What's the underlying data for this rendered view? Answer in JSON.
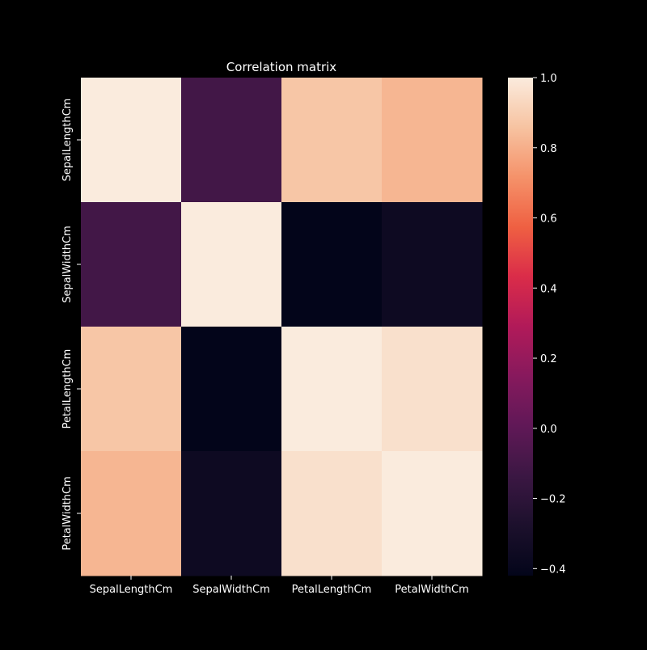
{
  "chart_data": {
    "type": "heatmap",
    "title": "Correlation matrix",
    "rows": [
      "SepalLengthCm",
      "SepalWidthCm",
      "PetalLengthCm",
      "PetalWidthCm"
    ],
    "columns": [
      "SepalLengthCm",
      "SepalWidthCm",
      "PetalLengthCm",
      "PetalWidthCm"
    ],
    "values": [
      [
        1.0,
        -0.11,
        0.87,
        0.82
      ],
      [
        -0.11,
        1.0,
        -0.42,
        -0.36
      ],
      [
        0.87,
        -0.42,
        1.0,
        0.96
      ],
      [
        0.82,
        -0.36,
        0.96,
        1.0
      ]
    ],
    "colorbar": {
      "min": -0.42,
      "max": 1.0,
      "ticks": [
        1.0,
        0.8,
        0.6,
        0.4,
        0.2,
        0.0,
        -0.2,
        -0.4
      ],
      "tick_labels": [
        "1.0",
        "0.8",
        "0.6",
        "0.4",
        "0.2",
        "0.0",
        "−0.2",
        "−0.4"
      ],
      "colormap": "rocket"
    },
    "background_color": "#000000",
    "text_color": "#ffffff"
  }
}
